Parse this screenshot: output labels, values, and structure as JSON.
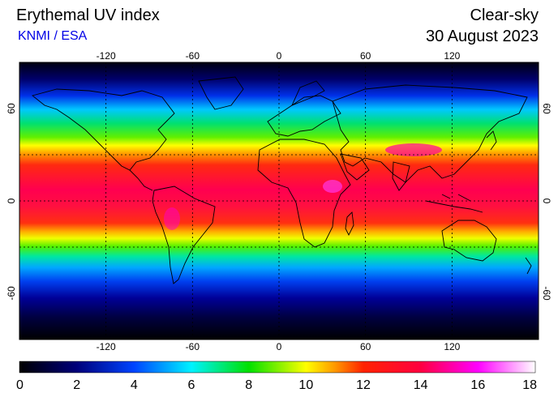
{
  "header": {
    "title": "Erythemal UV index",
    "credit": "KNMI / ESA",
    "mode": "Clear-sky",
    "date": "30 August 2023"
  },
  "map": {
    "lon_ticks": [
      -120,
      -60,
      0,
      60,
      120
    ],
    "lat_ticks": [
      60,
      0,
      -60
    ],
    "lon_range": [
      -180,
      180
    ],
    "lat_range": [
      -90,
      90
    ],
    "gridlines": "dotted",
    "colors": {
      "land_outline": "#000000",
      "grid": "#000000"
    }
  },
  "colorbar": {
    "ticks": [
      "0",
      "2",
      "4",
      "6",
      "8",
      "10",
      "12",
      "14",
      "16",
      "18"
    ],
    "stops": [
      {
        "value": 0,
        "color": "#000000"
      },
      {
        "value": 2,
        "color": "#00007a"
      },
      {
        "value": 4,
        "color": "#0044ff"
      },
      {
        "value": 6,
        "color": "#00f2ff"
      },
      {
        "value": 8,
        "color": "#00e000"
      },
      {
        "value": 10,
        "color": "#ffff00"
      },
      {
        "value": 11,
        "color": "#ff9900"
      },
      {
        "value": 12,
        "color": "#ff2200"
      },
      {
        "value": 14,
        "color": "#ff0040"
      },
      {
        "value": 16,
        "color": "#ff00ff"
      },
      {
        "value": 18,
        "color": "#ffffff"
      }
    ]
  }
}
